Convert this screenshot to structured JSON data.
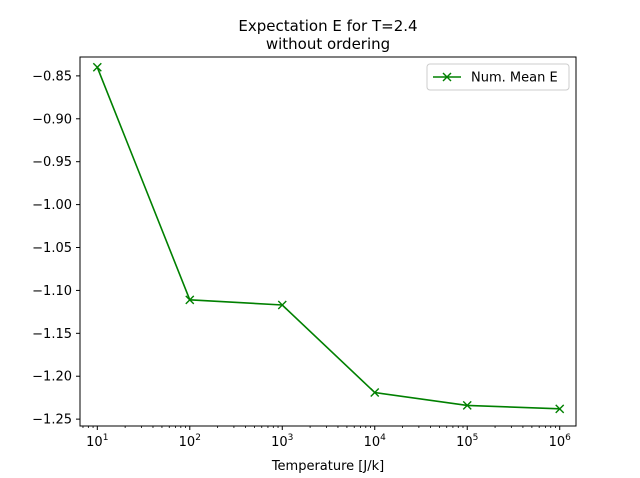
{
  "chart_data": {
    "type": "line",
    "title": "Expectation E for T=2.4\nwithout ordering",
    "title_lines": [
      "Expectation E for T=2.4",
      "without ordering"
    ],
    "xlabel": "Temperature [J/k]",
    "ylabel": "",
    "xscale": "log",
    "x_tick_exponents": [
      1,
      2,
      3,
      4,
      5,
      6
    ],
    "x_tick_labels": [
      "10^1",
      "10^2",
      "10^3",
      "10^4",
      "10^5",
      "10^6"
    ],
    "xlim": [
      6.5,
      1500000.0
    ],
    "ylim": [
      -1.258,
      -0.828
    ],
    "yticks": [
      -0.85,
      -0.9,
      -0.95,
      -1.0,
      -1.05,
      -1.1,
      -1.15,
      -1.2,
      -1.25
    ],
    "ytick_labels": [
      "−0.85",
      "−0.90",
      "−0.95",
      "−1.00",
      "−1.05",
      "−1.10",
      "−1.15",
      "−1.20",
      "−1.25"
    ],
    "grid": false,
    "legend_position": "top-right",
    "series": [
      {
        "name": "Num. Mean E",
        "color": "#008000",
        "marker": "x",
        "x": [
          10,
          100,
          1000,
          10000,
          100000,
          1000000
        ],
        "y": [
          -0.84,
          -1.111,
          -1.117,
          -1.219,
          -1.234,
          -1.238
        ]
      }
    ]
  }
}
